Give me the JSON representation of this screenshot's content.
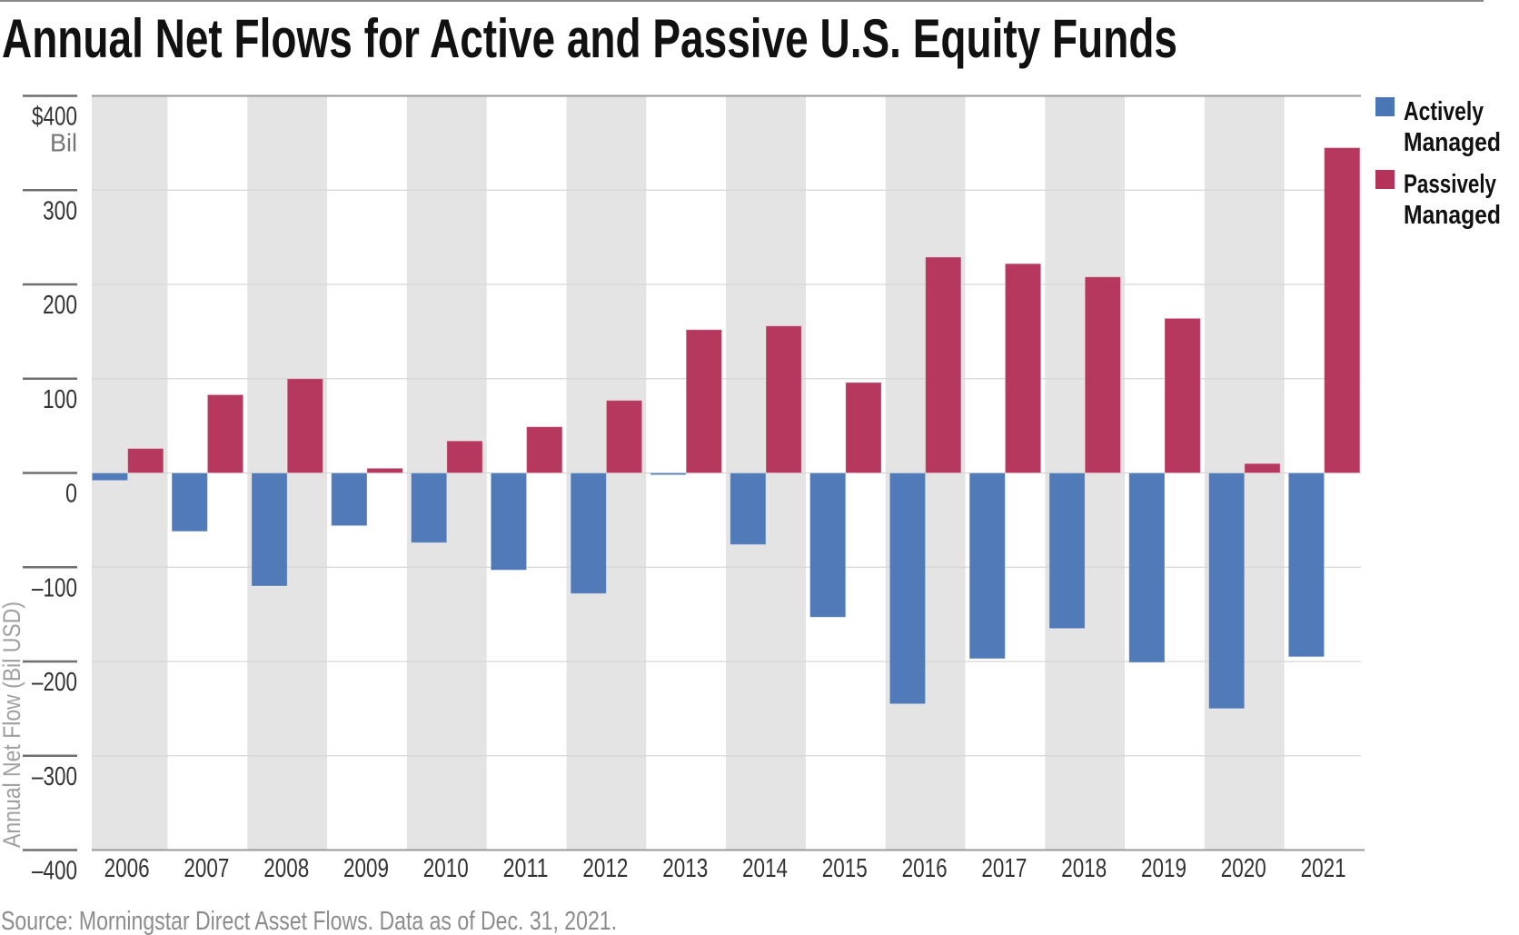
{
  "chart_data": {
    "type": "bar",
    "title": "Annual Net Flows for Active and Passive U.S. Equity Funds",
    "xlabel": "",
    "ylabel": "Annual Net Flow (Bil USD)",
    "ylim": [
      -400,
      400
    ],
    "yticks": [
      400,
      300,
      200,
      100,
      0,
      -100,
      -200,
      -300,
      -400
    ],
    "ytick_labels": [
      "$400",
      "300",
      "200",
      "100",
      "0",
      "–100",
      "–200",
      "–300",
      "–400"
    ],
    "y_unit_label": "Bil",
    "grid": true,
    "alternating_column_shading": true,
    "legend_position": "right",
    "categories": [
      "2006",
      "2007",
      "2008",
      "2009",
      "2010",
      "2011",
      "2012",
      "2013",
      "2014",
      "2015",
      "2016",
      "2017",
      "2018",
      "2019",
      "2020",
      "2021"
    ],
    "series": [
      {
        "name": "Actively Managed",
        "legend_lines": [
          "Actively",
          "Managed"
        ],
        "color": "#4a76b6",
        "values": [
          -8,
          -62,
          -120,
          -56,
          -74,
          -103,
          -128,
          -2,
          -76,
          -153,
          -245,
          -197,
          -165,
          -201,
          -250,
          -195
        ]
      },
      {
        "name": "Passively Managed",
        "legend_lines": [
          "Passively",
          "Managed"
        ],
        "color": "#b5325a",
        "values": [
          26,
          83,
          100,
          5,
          34,
          49,
          77,
          152,
          156,
          96,
          229,
          222,
          208,
          164,
          10,
          345
        ]
      }
    ],
    "source": "Source: Morningstar Direct Asset Flows. Data as of Dec. 31, 2021."
  },
  "colors": {
    "band": "#e4e4e4",
    "gridline": "#d6d6d6",
    "axis": "#9a9a9a",
    "tick_mark": "#6e6e6e",
    "top_rule": "#8a8a8a"
  }
}
